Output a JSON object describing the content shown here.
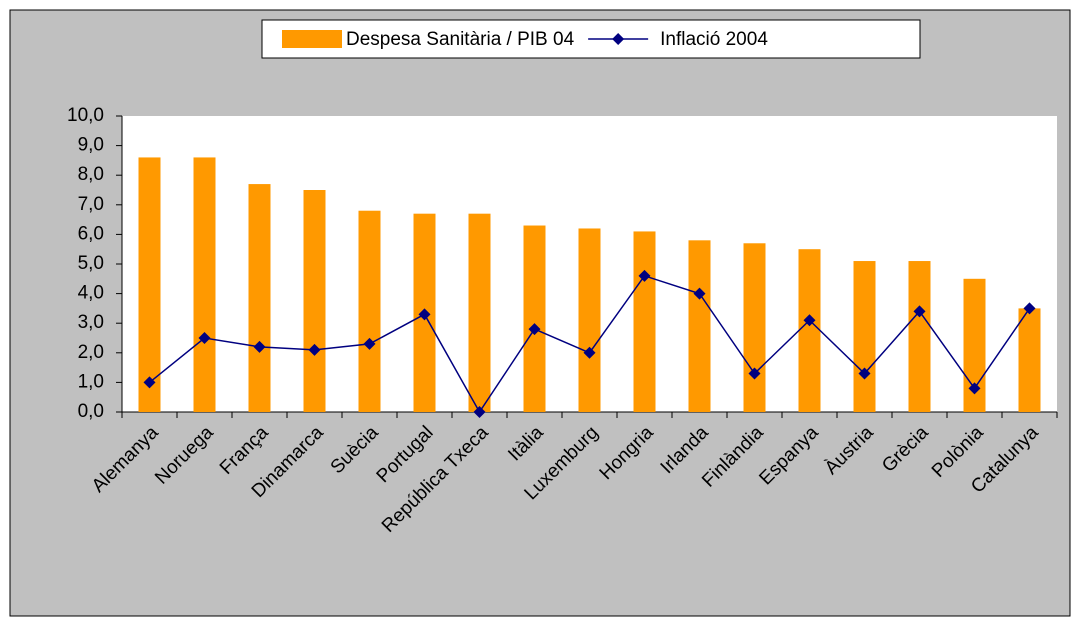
{
  "chart_data": {
    "type": "bar",
    "categories": [
      "Alemanya",
      "Noruega",
      "França",
      "Dinamarca",
      "Suècia",
      "Portugal",
      "República Txeca",
      "Itàlia",
      "Luxemburg",
      "Hongria",
      "Irlanda",
      "Finlàndia",
      "Espanya",
      "Àustria",
      "Grècia",
      "Polònia",
      "Catalunya"
    ],
    "series": [
      {
        "name": "Despesa Sanitària / PIB 04",
        "type": "bar",
        "color": "#ff9900",
        "values": [
          8.6,
          8.6,
          7.7,
          7.5,
          6.8,
          6.7,
          6.7,
          6.3,
          6.2,
          6.1,
          5.8,
          5.7,
          5.5,
          5.1,
          5.1,
          4.5,
          3.5
        ]
      },
      {
        "name": "Inflació 2004",
        "type": "line",
        "color": "#000080",
        "values": [
          1.0,
          2.5,
          2.2,
          2.1,
          2.3,
          3.3,
          0.0,
          2.8,
          2.0,
          4.6,
          4.0,
          1.3,
          3.1,
          1.3,
          3.4,
          0.8,
          3.5
        ]
      }
    ],
    "ylim": [
      0,
      10
    ],
    "yticks": [
      {
        "value": 0,
        "label": "0,0"
      },
      {
        "value": 1,
        "label": "1,0"
      },
      {
        "value": 2,
        "label": "2,0"
      },
      {
        "value": 3,
        "label": "3,0"
      },
      {
        "value": 4,
        "label": "4,0"
      },
      {
        "value": 5,
        "label": "5,0"
      },
      {
        "value": 6,
        "label": "6,0"
      },
      {
        "value": 7,
        "label": "7,0"
      },
      {
        "value": 8,
        "label": "8,0"
      },
      {
        "value": 9,
        "label": "9,0"
      },
      {
        "value": 10,
        "label": "10,0"
      }
    ],
    "legend": "top"
  }
}
